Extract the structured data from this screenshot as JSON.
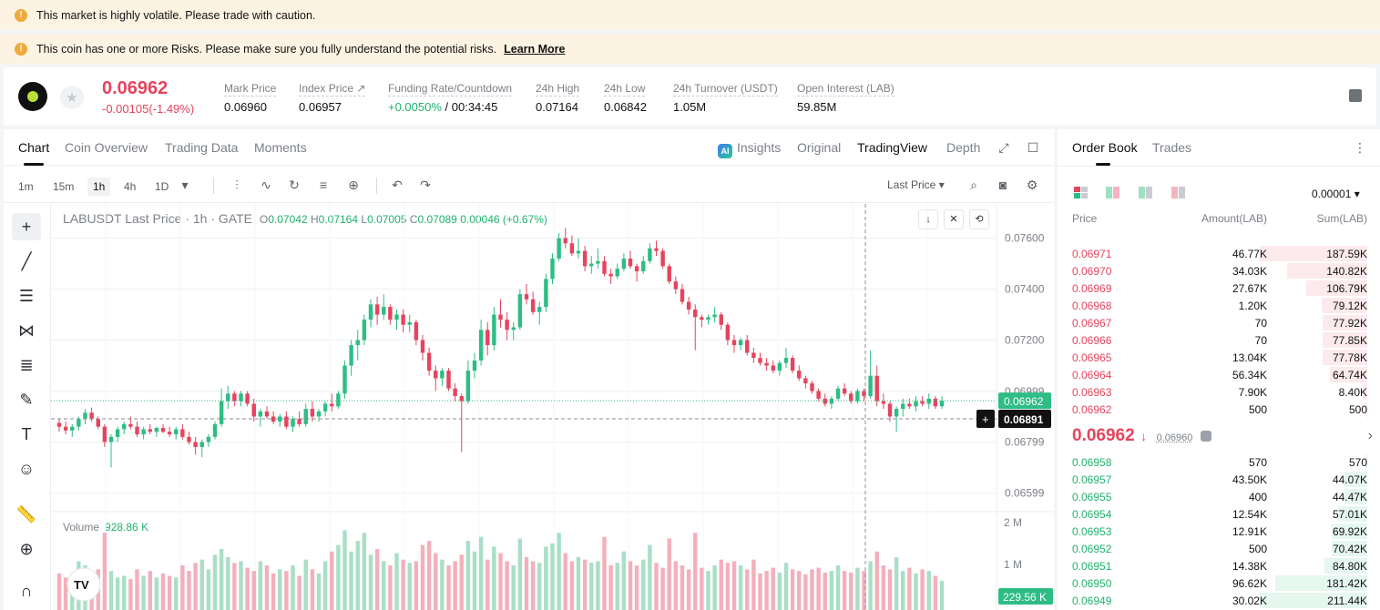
{
  "banners": [
    {
      "text": "This market is highly volatile. Please trade with caution.",
      "link": ""
    },
    {
      "text": "This coin has one or more Risks. Please make sure you fully understand the potential risks.",
      "link": "Learn More"
    }
  ],
  "ticker": {
    "last_price": "0.06962",
    "change": "-0.00105(-1.49%)",
    "stats": [
      {
        "label": "Mark Price",
        "value": "0.06960"
      },
      {
        "label": "Index Price ↗",
        "value": "0.06957"
      },
      {
        "label": "Funding Rate/Countdown",
        "value_rate": "+0.0050%",
        "value": " / 00:34:45"
      },
      {
        "label": "24h High",
        "value": "0.07164"
      },
      {
        "label": "24h Low",
        "value": "0.06842"
      },
      {
        "label": "24h Turnover (USDT)",
        "value": "1.05M"
      },
      {
        "label": "Open Interest (LAB)",
        "value": "59.85M"
      }
    ]
  },
  "chart_tabs": [
    "Chart",
    "Coin Overview",
    "Trading Data",
    "Moments"
  ],
  "view_tabs": {
    "insights": "Insights",
    "original": "Original",
    "tradingview": "TradingView",
    "depth": "Depth"
  },
  "timeframes": [
    "1m",
    "15m",
    "1h",
    "4h",
    "1D"
  ],
  "price_type": "Last Price",
  "legend": {
    "title": "LABUSDT Last Price · 1h · GATE",
    "o": "0.07042",
    "h": "0.07164",
    "l": "0.07005",
    "c": "0.07089",
    "chg": "0.00046 (+0.67%)"
  },
  "volume": {
    "label": "Volume",
    "value": "928.86 K",
    "current": "229.56 K"
  },
  "tv_logo": "TV",
  "chart_data": {
    "type": "candlestick",
    "price_axis": [
      "0.07600",
      "0.07400",
      "0.07200",
      "0.06999",
      "0.06799",
      "0.06599"
    ],
    "volume_axis": [
      "2 M",
      "1 M"
    ],
    "last_label": "0.06962",
    "cursor_label": "0.06891",
    "ylim": [
      0.0653,
      0.0767
    ],
    "colors": {
      "up": "#2ebd85",
      "down": "#e5445e"
    },
    "candles": [
      [
        0.06875,
        0.06893,
        0.0684,
        0.0686
      ],
      [
        0.0686,
        0.0688,
        0.0683,
        0.06845
      ],
      [
        0.06845,
        0.0687,
        0.0682,
        0.0686
      ],
      [
        0.0686,
        0.069,
        0.06845,
        0.0689
      ],
      [
        0.0689,
        0.0693,
        0.0687,
        0.06915
      ],
      [
        0.06915,
        0.06935,
        0.0688,
        0.0689
      ],
      [
        0.0689,
        0.069,
        0.0685,
        0.0686
      ],
      [
        0.0686,
        0.0687,
        0.0678,
        0.068
      ],
      [
        0.068,
        0.0683,
        0.067,
        0.0682
      ],
      [
        0.0682,
        0.0686,
        0.068,
        0.0685
      ],
      [
        0.0685,
        0.0688,
        0.0683,
        0.0687
      ],
      [
        0.0687,
        0.069,
        0.0685,
        0.0686
      ],
      [
        0.0686,
        0.0688,
        0.0682,
        0.0683
      ],
      [
        0.0683,
        0.0686,
        0.0681,
        0.0685
      ],
      [
        0.0685,
        0.0687,
        0.0683,
        0.0684
      ],
      [
        0.0684,
        0.0686,
        0.0682,
        0.06855
      ],
      [
        0.06855,
        0.0687,
        0.06835,
        0.0684
      ],
      [
        0.0684,
        0.0686,
        0.0682,
        0.0683
      ],
      [
        0.0683,
        0.0686,
        0.0681,
        0.0685
      ],
      [
        0.0685,
        0.0687,
        0.0681,
        0.0682
      ],
      [
        0.0682,
        0.0684,
        0.0679,
        0.068
      ],
      [
        0.068,
        0.0682,
        0.0675,
        0.0678
      ],
      [
        0.0678,
        0.0681,
        0.0674,
        0.068
      ],
      [
        0.068,
        0.0683,
        0.0678,
        0.0682
      ],
      [
        0.0682,
        0.0688,
        0.0681,
        0.0687
      ],
      [
        0.0687,
        0.0701,
        0.0686,
        0.0696
      ],
      [
        0.0696,
        0.0702,
        0.0693,
        0.0699
      ],
      [
        0.0699,
        0.07,
        0.0694,
        0.0696
      ],
      [
        0.0696,
        0.07,
        0.0694,
        0.0699
      ],
      [
        0.0699,
        0.07,
        0.0694,
        0.0695
      ],
      [
        0.0695,
        0.0697,
        0.0688,
        0.069
      ],
      [
        0.069,
        0.0693,
        0.0686,
        0.0692
      ],
      [
        0.0692,
        0.0694,
        0.0689,
        0.069
      ],
      [
        0.069,
        0.0692,
        0.0687,
        0.0688
      ],
      [
        0.0688,
        0.0691,
        0.0686,
        0.069
      ],
      [
        0.069,
        0.0692,
        0.0685,
        0.0686
      ],
      [
        0.0686,
        0.069,
        0.0684,
        0.0689
      ],
      [
        0.0689,
        0.0692,
        0.0686,
        0.0687
      ],
      [
        0.0687,
        0.0695,
        0.0686,
        0.0693
      ],
      [
        0.0693,
        0.0696,
        0.0688,
        0.069
      ],
      [
        0.069,
        0.0693,
        0.0688,
        0.0692
      ],
      [
        0.0692,
        0.0696,
        0.069,
        0.0695
      ],
      [
        0.0695,
        0.0699,
        0.0692,
        0.0694
      ],
      [
        0.0694,
        0.07,
        0.0693,
        0.0699
      ],
      [
        0.0699,
        0.0712,
        0.0697,
        0.071
      ],
      [
        0.071,
        0.072,
        0.0706,
        0.0718
      ],
      [
        0.0718,
        0.0724,
        0.0712,
        0.072
      ],
      [
        0.072,
        0.073,
        0.0718,
        0.0728
      ],
      [
        0.0728,
        0.0736,
        0.0725,
        0.0734
      ],
      [
        0.0734,
        0.0737,
        0.0726,
        0.073
      ],
      [
        0.073,
        0.0738,
        0.0728,
        0.0733
      ],
      [
        0.0733,
        0.0734,
        0.0726,
        0.0728
      ],
      [
        0.0728,
        0.0732,
        0.0724,
        0.073
      ],
      [
        0.073,
        0.0732,
        0.0723,
        0.0726
      ],
      [
        0.0726,
        0.073,
        0.0723,
        0.0727
      ],
      [
        0.0727,
        0.0728,
        0.0718,
        0.072
      ],
      [
        0.072,
        0.0722,
        0.0712,
        0.0715
      ],
      [
        0.0715,
        0.0717,
        0.0706,
        0.0708
      ],
      [
        0.0708,
        0.071,
        0.07,
        0.0705
      ],
      [
        0.0705,
        0.0709,
        0.0702,
        0.0708
      ],
      [
        0.0708,
        0.0709,
        0.07,
        0.0701
      ],
      [
        0.0701,
        0.0703,
        0.0696,
        0.0698
      ],
      [
        0.0698,
        0.0699,
        0.0676,
        0.0696
      ],
      [
        0.0696,
        0.0712,
        0.0695,
        0.0708
      ],
      [
        0.0708,
        0.0715,
        0.0705,
        0.0712
      ],
      [
        0.0712,
        0.0728,
        0.071,
        0.0724
      ],
      [
        0.0724,
        0.0727,
        0.0714,
        0.0718
      ],
      [
        0.0718,
        0.0733,
        0.0716,
        0.073
      ],
      [
        0.073,
        0.0736,
        0.0725,
        0.0728
      ],
      [
        0.0728,
        0.0731,
        0.072,
        0.0724
      ],
      [
        0.0724,
        0.0727,
        0.072,
        0.0725
      ],
      [
        0.0725,
        0.074,
        0.0724,
        0.0738
      ],
      [
        0.0738,
        0.0742,
        0.0734,
        0.0736
      ],
      [
        0.0736,
        0.0739,
        0.073,
        0.0731
      ],
      [
        0.0731,
        0.0735,
        0.0726,
        0.0733
      ],
      [
        0.0733,
        0.0746,
        0.0731,
        0.0744
      ],
      [
        0.0744,
        0.0754,
        0.0742,
        0.0752
      ],
      [
        0.0752,
        0.0762,
        0.0751,
        0.076
      ],
      [
        0.076,
        0.0764,
        0.0756,
        0.0758
      ],
      [
        0.0758,
        0.0761,
        0.0753,
        0.0754
      ],
      [
        0.0754,
        0.076,
        0.0752,
        0.0755
      ],
      [
        0.0755,
        0.0757,
        0.0747,
        0.0749
      ],
      [
        0.0749,
        0.0753,
        0.0746,
        0.075
      ],
      [
        0.075,
        0.0756,
        0.0748,
        0.0751
      ],
      [
        0.0751,
        0.0753,
        0.0745,
        0.0746
      ],
      [
        0.0746,
        0.0748,
        0.0742,
        0.0745
      ],
      [
        0.0745,
        0.075,
        0.0744,
        0.0748
      ],
      [
        0.0748,
        0.0754,
        0.0747,
        0.0752
      ],
      [
        0.0752,
        0.0755,
        0.0748,
        0.0749
      ],
      [
        0.0749,
        0.075,
        0.0743,
        0.0747
      ],
      [
        0.0747,
        0.0753,
        0.0746,
        0.0751
      ],
      [
        0.0751,
        0.0758,
        0.075,
        0.0756
      ],
      [
        0.0756,
        0.0759,
        0.0753,
        0.0755
      ],
      [
        0.0755,
        0.0756,
        0.0748,
        0.0749
      ],
      [
        0.0749,
        0.075,
        0.0742,
        0.0743
      ],
      [
        0.0743,
        0.0745,
        0.0738,
        0.074
      ],
      [
        0.074,
        0.0742,
        0.0734,
        0.0735
      ],
      [
        0.0735,
        0.0737,
        0.073,
        0.0732
      ],
      [
        0.0732,
        0.0734,
        0.0716,
        0.0729
      ],
      [
        0.0729,
        0.073,
        0.0725,
        0.0728
      ],
      [
        0.0728,
        0.073,
        0.0726,
        0.0729
      ],
      [
        0.0729,
        0.0733,
        0.0727,
        0.073
      ],
      [
        0.073,
        0.0731,
        0.0724,
        0.0726
      ],
      [
        0.0726,
        0.0727,
        0.0718,
        0.072
      ],
      [
        0.072,
        0.0722,
        0.0715,
        0.0718
      ],
      [
        0.0718,
        0.0721,
        0.0716,
        0.072
      ],
      [
        0.072,
        0.0722,
        0.0714,
        0.0715
      ],
      [
        0.0715,
        0.0717,
        0.0711,
        0.0713
      ],
      [
        0.0713,
        0.0715,
        0.071,
        0.0711
      ],
      [
        0.0711,
        0.0713,
        0.0708,
        0.071
      ],
      [
        0.071,
        0.0712,
        0.0707,
        0.0708
      ],
      [
        0.0708,
        0.0712,
        0.0706,
        0.0711
      ],
      [
        0.0711,
        0.0717,
        0.0709,
        0.0713
      ],
      [
        0.0713,
        0.0714,
        0.0707,
        0.0708
      ],
      [
        0.0708,
        0.071,
        0.0704,
        0.0705
      ],
      [
        0.0705,
        0.0706,
        0.0701,
        0.0703
      ],
      [
        0.0703,
        0.0704,
        0.0699,
        0.07
      ],
      [
        0.07,
        0.0701,
        0.0696,
        0.0697
      ],
      [
        0.0697,
        0.0699,
        0.0694,
        0.0695
      ],
      [
        0.0695,
        0.0698,
        0.0693,
        0.0697
      ],
      [
        0.0697,
        0.0702,
        0.0696,
        0.0701
      ],
      [
        0.0701,
        0.0703,
        0.0698,
        0.0699
      ],
      [
        0.0699,
        0.07,
        0.0695,
        0.0696
      ],
      [
        0.0696,
        0.0701,
        0.0695,
        0.07
      ],
      [
        0.07,
        0.0701,
        0.0696,
        0.0698
      ],
      [
        0.0698,
        0.0716,
        0.0697,
        0.0706
      ],
      [
        0.0706,
        0.071,
        0.0694,
        0.0696
      ],
      [
        0.0696,
        0.0699,
        0.0693,
        0.0695
      ],
      [
        0.0695,
        0.0696,
        0.0688,
        0.069
      ],
      [
        0.069,
        0.0694,
        0.0684,
        0.0693
      ],
      [
        0.0693,
        0.0697,
        0.069,
        0.0695
      ],
      [
        0.0695,
        0.0697,
        0.0693,
        0.0694
      ],
      [
        0.0694,
        0.0698,
        0.0692,
        0.0696
      ],
      [
        0.0696,
        0.0698,
        0.0694,
        0.0695
      ],
      [
        0.0695,
        0.0699,
        0.0693,
        0.0697
      ],
      [
        0.0697,
        0.0698,
        0.0693,
        0.0694
      ],
      [
        0.0694,
        0.0698,
        0.0693,
        0.06962
      ]
    ],
    "volumes": [
      45,
      40,
      38,
      60,
      55,
      42,
      50,
      95,
      48,
      40,
      42,
      38,
      50,
      42,
      48,
      40,
      45,
      42,
      40,
      55,
      48,
      58,
      62,
      50,
      68,
      75,
      65,
      58,
      60,
      52,
      48,
      60,
      55,
      45,
      50,
      48,
      55,
      42,
      62,
      50,
      45,
      60,
      72,
      80,
      98,
      72,
      85,
      95,
      68,
      75,
      60,
      55,
      70,
      62,
      58,
      60,
      80,
      85,
      70,
      62,
      55,
      60,
      68,
      85,
      72,
      90,
      62,
      78,
      70,
      60,
      55,
      88,
      65,
      60,
      58,
      78,
      82,
      95,
      70,
      60,
      65,
      62,
      58,
      60,
      90,
      55,
      58,
      72,
      60,
      55,
      62,
      80,
      58,
      52,
      88,
      60,
      55,
      50,
      95,
      52,
      48,
      55,
      62,
      58,
      60,
      55,
      50,
      62,
      45,
      48,
      52,
      46,
      58,
      50,
      48,
      44,
      50,
      52,
      46,
      48,
      55,
      48,
      46,
      52,
      48,
      60,
      72,
      55,
      50,
      65,
      48,
      52,
      45,
      50,
      48,
      42,
      36
    ]
  },
  "order_book": {
    "tabs": [
      "Order Book",
      "Trades"
    ],
    "tick": "0.00001",
    "cols": {
      "price": "Price",
      "amount": "Amount(LAB)",
      "sum": "Sum(LAB)"
    },
    "asks": [
      {
        "p": "0.06971",
        "a": "46.77K",
        "s": "187.59K",
        "f": 1.0
      },
      {
        "p": "0.06970",
        "a": "34.03K",
        "s": "140.82K",
        "f": 0.75
      },
      {
        "p": "0.06969",
        "a": "27.67K",
        "s": "106.79K",
        "f": 0.57
      },
      {
        "p": "0.06968",
        "a": "1.20K",
        "s": "79.12K",
        "f": 0.42
      },
      {
        "p": "0.06967",
        "a": "70",
        "s": "77.92K",
        "f": 0.415
      },
      {
        "p": "0.06966",
        "a": "70",
        "s": "77.85K",
        "f": 0.415
      },
      {
        "p": "0.06965",
        "a": "13.04K",
        "s": "77.78K",
        "f": 0.415
      },
      {
        "p": "0.06964",
        "a": "56.34K",
        "s": "64.74K",
        "f": 0.345
      },
      {
        "p": "0.06963",
        "a": "7.90K",
        "s": "8.40K",
        "f": 0.045
      },
      {
        "p": "0.06962",
        "a": "500",
        "s": "500",
        "f": 0.003
      }
    ],
    "mid_price": "0.06962",
    "mark": "0.06960",
    "bids": [
      {
        "p": "0.06958",
        "a": "570",
        "s": "570",
        "f": 0.003
      },
      {
        "p": "0.06957",
        "a": "43.50K",
        "s": "44.07K",
        "f": 0.21
      },
      {
        "p": "0.06955",
        "a": "400",
        "s": "44.47K",
        "f": 0.21
      },
      {
        "p": "0.06954",
        "a": "12.54K",
        "s": "57.01K",
        "f": 0.27
      },
      {
        "p": "0.06953",
        "a": "12.91K",
        "s": "69.92K",
        "f": 0.33
      },
      {
        "p": "0.06952",
        "a": "500",
        "s": "70.42K",
        "f": 0.33
      },
      {
        "p": "0.06951",
        "a": "14.38K",
        "s": "84.80K",
        "f": 0.4
      },
      {
        "p": "0.06950",
        "a": "96.62K",
        "s": "181.42K",
        "f": 0.86
      },
      {
        "p": "0.06949",
        "a": "30.02K",
        "s": "211.44K",
        "f": 1.0
      }
    ]
  }
}
